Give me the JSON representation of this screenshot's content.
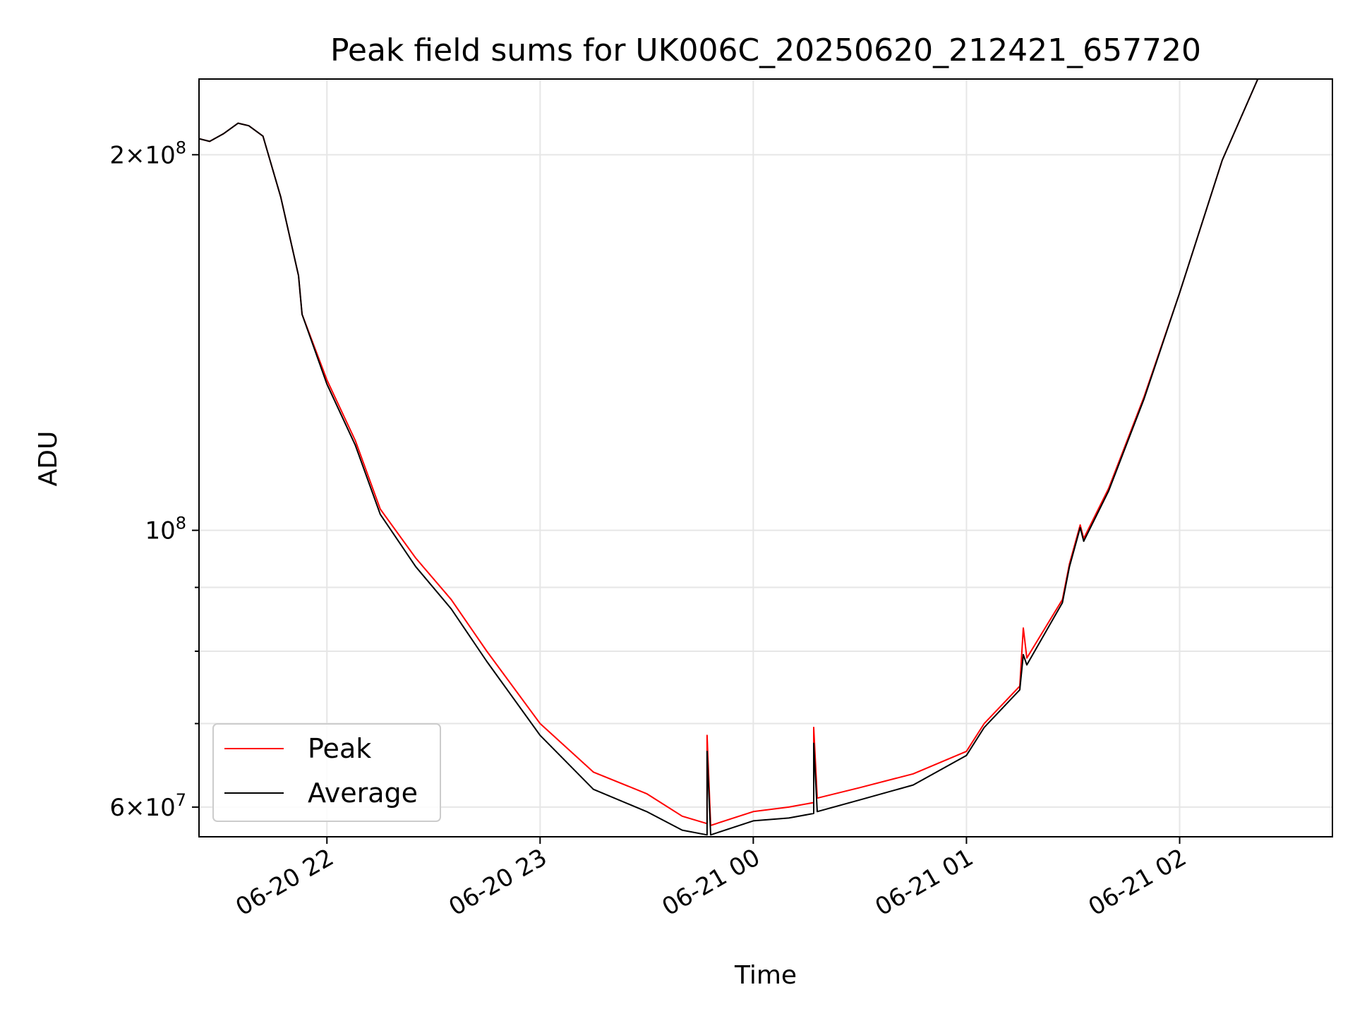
{
  "chart_data": {
    "type": "line",
    "title": "Peak field sums for UK006C_20250620_212421_657720",
    "xlabel": "Time",
    "ylabel": "ADU",
    "yscale": "log",
    "ylim": [
      56800000,
      230000000
    ],
    "xlim": [
      "06-20 21:24",
      "06-21 02:43"
    ],
    "grid": true,
    "legend_position": "lower-left",
    "x_ticks": [
      {
        "time": "06-20 22:00",
        "label": "06-20 22"
      },
      {
        "time": "06-20 23:00",
        "label": "06-20 23"
      },
      {
        "time": "06-21 00:00",
        "label": "06-21 00"
      },
      {
        "time": "06-21 01:00",
        "label": "06-21 01"
      },
      {
        "time": "06-21 02:00",
        "label": "06-21 02"
      }
    ],
    "y_ticks": [
      {
        "value": 60000000,
        "base": "6",
        "exp": "7"
      },
      {
        "value": 100000000,
        "base": "",
        "exp": "8"
      },
      {
        "value": 200000000,
        "base": "2",
        "exp": "8"
      }
    ],
    "y_minor_ticks": [
      70000000,
      80000000,
      90000000
    ],
    "series": [
      {
        "name": "Peak",
        "color": "#ff0000",
        "points": [
          [
            "06-20 21:24",
            206000000
          ],
          [
            "06-20 21:27",
            205000000
          ],
          [
            "06-20 21:31",
            208000000
          ],
          [
            "06-20 21:35",
            212000000
          ],
          [
            "06-20 21:38",
            211000000
          ],
          [
            "06-20 21:42",
            207000000
          ],
          [
            "06-20 21:47",
            185000000
          ],
          [
            "06-20 21:52",
            160000000
          ],
          [
            "06-20 21:53",
            149000000
          ],
          [
            "06-20 22:00",
            132000000
          ],
          [
            "06-20 22:08",
            118000000
          ],
          [
            "06-20 22:15",
            104000000
          ],
          [
            "06-20 22:25",
            95000000
          ],
          [
            "06-20 22:35",
            88000000
          ],
          [
            "06-20 22:45",
            80000000
          ],
          [
            "06-20 23:00",
            70000000
          ],
          [
            "06-20 23:15",
            64000000
          ],
          [
            "06-20 23:30",
            61500000
          ],
          [
            "06-20 23:40",
            59000000
          ],
          [
            "06-20 23:47",
            58200000
          ],
          [
            "06-20 23:47",
            68500000
          ],
          [
            "06-20 23:48",
            58000000
          ],
          [
            "06-20 24:00",
            59500000
          ],
          [
            "06-21 00:10",
            60000000
          ],
          [
            "06-21 00:17",
            60500000
          ],
          [
            "06-21 00:17",
            69500000
          ],
          [
            "06-21 00:18",
            61000000
          ],
          [
            "06-21 00:30",
            62200000
          ],
          [
            "06-21 00:45",
            63800000
          ],
          [
            "06-21 01:00",
            66500000
          ],
          [
            "06-21 01:05",
            70000000
          ],
          [
            "06-21 01:15",
            75000000
          ],
          [
            "06-21 01:16",
            83500000
          ],
          [
            "06-21 01:17",
            79000000
          ],
          [
            "06-21 01:27",
            88000000
          ],
          [
            "06-21 01:29",
            94000000
          ],
          [
            "06-21 01:32",
            101000000
          ],
          [
            "06-21 01:33",
            98500000
          ],
          [
            "06-21 01:40",
            108000000
          ],
          [
            "06-21 01:50",
            128000000
          ],
          [
            "06-21 02:00",
            155000000
          ],
          [
            "06-21 02:12",
            198000000
          ],
          [
            "06-21 02:22",
            230000000
          ],
          [
            "06-21 02:43",
            230000000
          ]
        ]
      },
      {
        "name": "Average",
        "color": "#000000",
        "points": [
          [
            "06-20 21:24",
            206000000
          ],
          [
            "06-20 21:27",
            205000000
          ],
          [
            "06-20 21:31",
            208000000
          ],
          [
            "06-20 21:35",
            212000000
          ],
          [
            "06-20 21:38",
            211000000
          ],
          [
            "06-20 21:42",
            207000000
          ],
          [
            "06-20 21:47",
            185000000
          ],
          [
            "06-20 21:52",
            160000000
          ],
          [
            "06-20 21:53",
            149000000
          ],
          [
            "06-20 22:00",
            131000000
          ],
          [
            "06-20 22:08",
            117000000
          ],
          [
            "06-20 22:15",
            103000000
          ],
          [
            "06-20 22:25",
            93500000
          ],
          [
            "06-20 22:35",
            86500000
          ],
          [
            "06-20 22:45",
            78500000
          ],
          [
            "06-20 23:00",
            68500000
          ],
          [
            "06-20 23:15",
            62000000
          ],
          [
            "06-20 23:30",
            59500000
          ],
          [
            "06-20 23:40",
            57500000
          ],
          [
            "06-20 23:47",
            57000000
          ],
          [
            "06-20 23:47",
            66500000
          ],
          [
            "06-20 23:48",
            57000000
          ],
          [
            "06-20 24:00",
            58500000
          ],
          [
            "06-21 00:10",
            58800000
          ],
          [
            "06-21 00:17",
            59300000
          ],
          [
            "06-21 00:17",
            67500000
          ],
          [
            "06-21 00:18",
            59500000
          ],
          [
            "06-21 00:30",
            60800000
          ],
          [
            "06-21 00:45",
            62500000
          ],
          [
            "06-21 01:00",
            66000000
          ],
          [
            "06-21 01:05",
            69500000
          ],
          [
            "06-21 01:15",
            74500000
          ],
          [
            "06-21 01:16",
            79500000
          ],
          [
            "06-21 01:17",
            78000000
          ],
          [
            "06-21 01:27",
            87500000
          ],
          [
            "06-21 01:29",
            93500000
          ],
          [
            "06-21 01:32",
            100500000
          ],
          [
            "06-21 01:33",
            98000000
          ],
          [
            "06-21 01:40",
            107500000
          ],
          [
            "06-21 01:50",
            127500000
          ],
          [
            "06-21 02:00",
            155000000
          ],
          [
            "06-21 02:12",
            198000000
          ],
          [
            "06-21 02:22",
            230000000
          ],
          [
            "06-21 02:43",
            230000000
          ]
        ]
      }
    ]
  }
}
